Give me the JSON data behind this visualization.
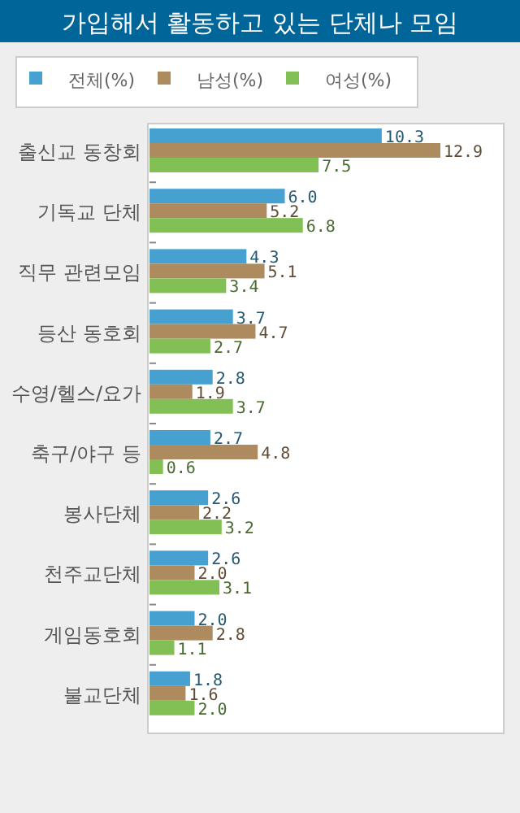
{
  "chart_data": {
    "type": "bar",
    "orientation": "horizontal",
    "title": "가입해서 활동하고 있는 단체나 모임",
    "legend": "top",
    "categories": [
      "출신교 동창회",
      "기독교 단체",
      "직무 관련모임",
      "등산 동호회",
      "수영/헬스/요가",
      "축구/야구 등",
      "봉사단체",
      "천주교단체",
      "게임동호회",
      "불교단체"
    ],
    "series": [
      {
        "name": "전체(%)",
        "color": "#46a0d0",
        "values": [
          10.3,
          6.0,
          4.3,
          3.7,
          2.8,
          2.7,
          2.6,
          2.6,
          2.0,
          1.8
        ],
        "value_labels": [
          "10.3",
          "6.0",
          "4.3",
          "3.7",
          "2.8",
          "2.7",
          "2.6",
          "2.6",
          "2.0",
          "1.8"
        ]
      },
      {
        "name": "남성(%)",
        "color": "#ae8b5f",
        "values": [
          12.9,
          5.2,
          5.1,
          4.7,
          1.9,
          4.8,
          2.2,
          2.0,
          2.8,
          1.6
        ],
        "value_labels": [
          "12.9",
          "5.2",
          "5.1",
          "4.7",
          "1.9",
          "4.8",
          "2.2",
          "2.0",
          "2.8",
          "1.6"
        ]
      },
      {
        "name": "여성(%)",
        "color": "#82c056",
        "values": [
          7.5,
          6.8,
          3.4,
          2.7,
          3.7,
          0.6,
          3.2,
          3.1,
          1.1,
          2.0
        ],
        "value_labels": [
          "7.5",
          "6.8",
          "3.4",
          "2.7",
          "3.7",
          "0.6",
          "3.2",
          "3.1",
          "1.1",
          "2.0"
        ]
      }
    ]
  }
}
